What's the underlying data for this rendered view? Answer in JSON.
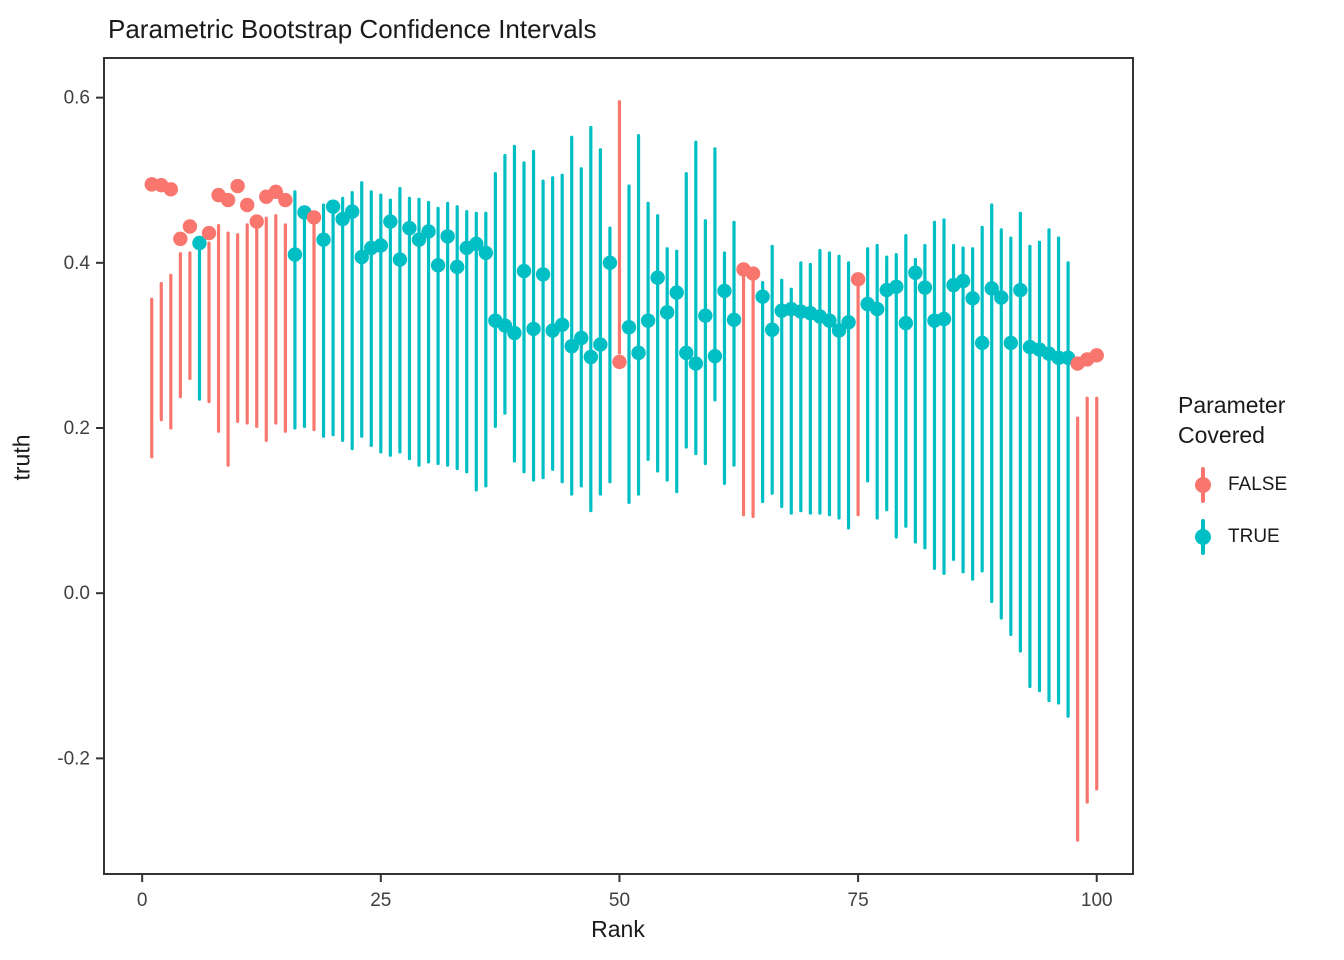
{
  "chart_data": {
    "type": "scatter",
    "title": "Parametric Bootstrap Confidence Intervals",
    "xlabel": "Rank",
    "ylabel": "truth",
    "x_ticks": [
      0,
      25,
      50,
      75,
      100
    ],
    "y_ticks": [
      0.6,
      0.4,
      0.2,
      0.0,
      -0.2
    ],
    "xlim": [
      -4.0,
      103.8
    ],
    "ylim": [
      -0.34,
      0.648
    ],
    "grid": false,
    "legend": {
      "title": "Parameter\nCovered",
      "position": "right",
      "entries": [
        {
          "label": "FALSE",
          "color": "#F8766D"
        },
        {
          "label": "TRUE",
          "color": "#00BFC4"
        }
      ]
    },
    "series_note": "each point = truth dot + bootstrap CI segment [lo,hi]; color by whether CI covers truth",
    "points": [
      {
        "rank": 1,
        "truth": 0.495,
        "lo": 0.165,
        "hi": 0.356,
        "covered": false
      },
      {
        "rank": 2,
        "truth": 0.494,
        "lo": 0.21,
        "hi": 0.375,
        "covered": false
      },
      {
        "rank": 3,
        "truth": 0.489,
        "lo": 0.2,
        "hi": 0.385,
        "covered": false
      },
      {
        "rank": 4,
        "truth": 0.429,
        "lo": 0.238,
        "hi": 0.411,
        "covered": false
      },
      {
        "rank": 5,
        "truth": 0.444,
        "lo": 0.26,
        "hi": 0.412,
        "covered": false
      },
      {
        "rank": 6,
        "truth": 0.424,
        "lo": 0.235,
        "hi": 0.43,
        "covered": true
      },
      {
        "rank": 7,
        "truth": 0.436,
        "lo": 0.232,
        "hi": 0.424,
        "covered": false
      },
      {
        "rank": 8,
        "truth": 0.482,
        "lo": 0.196,
        "hi": 0.445,
        "covered": false
      },
      {
        "rank": 9,
        "truth": 0.476,
        "lo": 0.155,
        "hi": 0.436,
        "covered": false
      },
      {
        "rank": 10,
        "truth": 0.493,
        "lo": 0.208,
        "hi": 0.434,
        "covered": false
      },
      {
        "rank": 11,
        "truth": 0.47,
        "lo": 0.206,
        "hi": 0.446,
        "covered": false
      },
      {
        "rank": 12,
        "truth": 0.45,
        "lo": 0.202,
        "hi": 0.445,
        "covered": false
      },
      {
        "rank": 13,
        "truth": 0.48,
        "lo": 0.185,
        "hi": 0.454,
        "covered": false
      },
      {
        "rank": 14,
        "truth": 0.486,
        "lo": 0.206,
        "hi": 0.457,
        "covered": false
      },
      {
        "rank": 15,
        "truth": 0.476,
        "lo": 0.196,
        "hi": 0.446,
        "covered": false
      },
      {
        "rank": 16,
        "truth": 0.41,
        "lo": 0.2,
        "hi": 0.486,
        "covered": true
      },
      {
        "rank": 17,
        "truth": 0.461,
        "lo": 0.202,
        "hi": 0.465,
        "covered": true
      },
      {
        "rank": 18,
        "truth": 0.455,
        "lo": 0.198,
        "hi": 0.452,
        "covered": false
      },
      {
        "rank": 19,
        "truth": 0.428,
        "lo": 0.19,
        "hi": 0.47,
        "covered": true
      },
      {
        "rank": 20,
        "truth": 0.468,
        "lo": 0.192,
        "hi": 0.474,
        "covered": true
      },
      {
        "rank": 21,
        "truth": 0.453,
        "lo": 0.185,
        "hi": 0.478,
        "covered": true
      },
      {
        "rank": 22,
        "truth": 0.462,
        "lo": 0.175,
        "hi": 0.485,
        "covered": true
      },
      {
        "rank": 23,
        "truth": 0.407,
        "lo": 0.19,
        "hi": 0.497,
        "covered": true
      },
      {
        "rank": 24,
        "truth": 0.418,
        "lo": 0.179,
        "hi": 0.486,
        "covered": true
      },
      {
        "rank": 25,
        "truth": 0.421,
        "lo": 0.171,
        "hi": 0.482,
        "covered": true
      },
      {
        "rank": 26,
        "truth": 0.45,
        "lo": 0.167,
        "hi": 0.476,
        "covered": true
      },
      {
        "rank": 27,
        "truth": 0.404,
        "lo": 0.171,
        "hi": 0.49,
        "covered": true
      },
      {
        "rank": 28,
        "truth": 0.442,
        "lo": 0.163,
        "hi": 0.478,
        "covered": true
      },
      {
        "rank": 29,
        "truth": 0.428,
        "lo": 0.155,
        "hi": 0.477,
        "covered": true
      },
      {
        "rank": 30,
        "truth": 0.438,
        "lo": 0.159,
        "hi": 0.473,
        "covered": true
      },
      {
        "rank": 31,
        "truth": 0.397,
        "lo": 0.157,
        "hi": 0.466,
        "covered": true
      },
      {
        "rank": 32,
        "truth": 0.432,
        "lo": 0.155,
        "hi": 0.472,
        "covered": true
      },
      {
        "rank": 33,
        "truth": 0.395,
        "lo": 0.151,
        "hi": 0.468,
        "covered": true
      },
      {
        "rank": 34,
        "truth": 0.418,
        "lo": 0.147,
        "hi": 0.462,
        "covered": true
      },
      {
        "rank": 35,
        "truth": 0.423,
        "lo": 0.125,
        "hi": 0.46,
        "covered": true
      },
      {
        "rank": 36,
        "truth": 0.412,
        "lo": 0.13,
        "hi": 0.46,
        "covered": true
      },
      {
        "rank": 37,
        "truth": 0.33,
        "lo": 0.202,
        "hi": 0.508,
        "covered": true
      },
      {
        "rank": 38,
        "truth": 0.324,
        "lo": 0.218,
        "hi": 0.53,
        "covered": true
      },
      {
        "rank": 39,
        "truth": 0.315,
        "lo": 0.16,
        "hi": 0.541,
        "covered": true
      },
      {
        "rank": 40,
        "truth": 0.39,
        "lo": 0.147,
        "hi": 0.521,
        "covered": true
      },
      {
        "rank": 41,
        "truth": 0.32,
        "lo": 0.137,
        "hi": 0.535,
        "covered": true
      },
      {
        "rank": 42,
        "truth": 0.386,
        "lo": 0.14,
        "hi": 0.499,
        "covered": true
      },
      {
        "rank": 43,
        "truth": 0.318,
        "lo": 0.15,
        "hi": 0.503,
        "covered": true
      },
      {
        "rank": 44,
        "truth": 0.325,
        "lo": 0.135,
        "hi": 0.506,
        "covered": true
      },
      {
        "rank": 45,
        "truth": 0.299,
        "lo": 0.12,
        "hi": 0.552,
        "covered": true
      },
      {
        "rank": 46,
        "truth": 0.309,
        "lo": 0.13,
        "hi": 0.514,
        "covered": true
      },
      {
        "rank": 47,
        "truth": 0.286,
        "lo": 0.1,
        "hi": 0.564,
        "covered": true
      },
      {
        "rank": 48,
        "truth": 0.301,
        "lo": 0.12,
        "hi": 0.537,
        "covered": true
      },
      {
        "rank": 49,
        "truth": 0.4,
        "lo": 0.135,
        "hi": 0.442,
        "covered": true
      },
      {
        "rank": 50,
        "truth": 0.28,
        "lo": 0.291,
        "hi": 0.595,
        "covered": false
      },
      {
        "rank": 51,
        "truth": 0.322,
        "lo": 0.11,
        "hi": 0.493,
        "covered": true
      },
      {
        "rank": 52,
        "truth": 0.291,
        "lo": 0.12,
        "hi": 0.554,
        "covered": true
      },
      {
        "rank": 53,
        "truth": 0.33,
        "lo": 0.162,
        "hi": 0.472,
        "covered": true
      },
      {
        "rank": 54,
        "truth": 0.382,
        "lo": 0.148,
        "hi": 0.457,
        "covered": true
      },
      {
        "rank": 55,
        "truth": 0.34,
        "lo": 0.137,
        "hi": 0.417,
        "covered": true
      },
      {
        "rank": 56,
        "truth": 0.364,
        "lo": 0.123,
        "hi": 0.414,
        "covered": true
      },
      {
        "rank": 57,
        "truth": 0.291,
        "lo": 0.177,
        "hi": 0.508,
        "covered": true
      },
      {
        "rank": 58,
        "truth": 0.278,
        "lo": 0.169,
        "hi": 0.546,
        "covered": true
      },
      {
        "rank": 59,
        "truth": 0.336,
        "lo": 0.157,
        "hi": 0.451,
        "covered": true
      },
      {
        "rank": 60,
        "truth": 0.287,
        "lo": 0.234,
        "hi": 0.538,
        "covered": true
      },
      {
        "rank": 61,
        "truth": 0.366,
        "lo": 0.133,
        "hi": 0.412,
        "covered": true
      },
      {
        "rank": 62,
        "truth": 0.331,
        "lo": 0.155,
        "hi": 0.449,
        "covered": true
      },
      {
        "rank": 63,
        "truth": 0.392,
        "lo": 0.095,
        "hi": 0.385,
        "covered": false
      },
      {
        "rank": 64,
        "truth": 0.387,
        "lo": 0.093,
        "hi": 0.38,
        "covered": false
      },
      {
        "rank": 65,
        "truth": 0.359,
        "lo": 0.111,
        "hi": 0.376,
        "covered": true
      },
      {
        "rank": 66,
        "truth": 0.319,
        "lo": 0.121,
        "hi": 0.42,
        "covered": true
      },
      {
        "rank": 67,
        "truth": 0.342,
        "lo": 0.105,
        "hi": 0.379,
        "covered": true
      },
      {
        "rank": 68,
        "truth": 0.344,
        "lo": 0.097,
        "hi": 0.368,
        "covered": true
      },
      {
        "rank": 69,
        "truth": 0.341,
        "lo": 0.1,
        "hi": 0.4,
        "covered": true
      },
      {
        "rank": 70,
        "truth": 0.339,
        "lo": 0.097,
        "hi": 0.398,
        "covered": true
      },
      {
        "rank": 71,
        "truth": 0.335,
        "lo": 0.097,
        "hi": 0.415,
        "covered": true
      },
      {
        "rank": 72,
        "truth": 0.33,
        "lo": 0.095,
        "hi": 0.412,
        "covered": true
      },
      {
        "rank": 73,
        "truth": 0.318,
        "lo": 0.091,
        "hi": 0.408,
        "covered": true
      },
      {
        "rank": 74,
        "truth": 0.328,
        "lo": 0.079,
        "hi": 0.4,
        "covered": true
      },
      {
        "rank": 75,
        "truth": 0.38,
        "lo": 0.095,
        "hi": 0.371,
        "covered": false
      },
      {
        "rank": 76,
        "truth": 0.35,
        "lo": 0.136,
        "hi": 0.417,
        "covered": true
      },
      {
        "rank": 77,
        "truth": 0.344,
        "lo": 0.091,
        "hi": 0.421,
        "covered": true
      },
      {
        "rank": 78,
        "truth": 0.367,
        "lo": 0.101,
        "hi": 0.407,
        "covered": true
      },
      {
        "rank": 79,
        "truth": 0.371,
        "lo": 0.068,
        "hi": 0.41,
        "covered": true
      },
      {
        "rank": 80,
        "truth": 0.327,
        "lo": 0.081,
        "hi": 0.433,
        "covered": true
      },
      {
        "rank": 81,
        "truth": 0.388,
        "lo": 0.062,
        "hi": 0.404,
        "covered": true
      },
      {
        "rank": 82,
        "truth": 0.37,
        "lo": 0.055,
        "hi": 0.421,
        "covered": true
      },
      {
        "rank": 83,
        "truth": 0.33,
        "lo": 0.03,
        "hi": 0.449,
        "covered": true
      },
      {
        "rank": 84,
        "truth": 0.332,
        "lo": 0.024,
        "hi": 0.452,
        "covered": true
      },
      {
        "rank": 85,
        "truth": 0.373,
        "lo": 0.041,
        "hi": 0.421,
        "covered": true
      },
      {
        "rank": 86,
        "truth": 0.378,
        "lo": 0.026,
        "hi": 0.418,
        "covered": true
      },
      {
        "rank": 87,
        "truth": 0.357,
        "lo": 0.017,
        "hi": 0.417,
        "covered": true
      },
      {
        "rank": 88,
        "truth": 0.303,
        "lo": 0.027,
        "hi": 0.443,
        "covered": true
      },
      {
        "rank": 89,
        "truth": 0.369,
        "lo": -0.01,
        "hi": 0.47,
        "covered": true
      },
      {
        "rank": 90,
        "truth": 0.358,
        "lo": -0.03,
        "hi": 0.44,
        "covered": true
      },
      {
        "rank": 91,
        "truth": 0.303,
        "lo": -0.05,
        "hi": 0.43,
        "covered": true
      },
      {
        "rank": 92,
        "truth": 0.367,
        "lo": -0.07,
        "hi": 0.46,
        "covered": true
      },
      {
        "rank": 93,
        "truth": 0.298,
        "lo": -0.113,
        "hi": 0.42,
        "covered": true
      },
      {
        "rank": 94,
        "truth": 0.295,
        "lo": -0.118,
        "hi": 0.425,
        "covered": true
      },
      {
        "rank": 95,
        "truth": 0.29,
        "lo": -0.13,
        "hi": 0.44,
        "covered": true
      },
      {
        "rank": 96,
        "truth": 0.285,
        "lo": -0.133,
        "hi": 0.43,
        "covered": true
      },
      {
        "rank": 97,
        "truth": 0.285,
        "lo": -0.149,
        "hi": 0.4,
        "covered": true
      },
      {
        "rank": 98,
        "truth": 0.278,
        "lo": -0.299,
        "hi": 0.212,
        "covered": false
      },
      {
        "rank": 99,
        "truth": 0.283,
        "lo": -0.253,
        "hi": 0.236,
        "covered": false
      },
      {
        "rank": 100,
        "truth": 0.288,
        "lo": -0.237,
        "hi": 0.236,
        "covered": false
      }
    ]
  },
  "colors": {
    "false_color": "#F8766D",
    "true_color": "#00BFC4",
    "axis_line": "#333333",
    "text": "#1a1a1a"
  }
}
